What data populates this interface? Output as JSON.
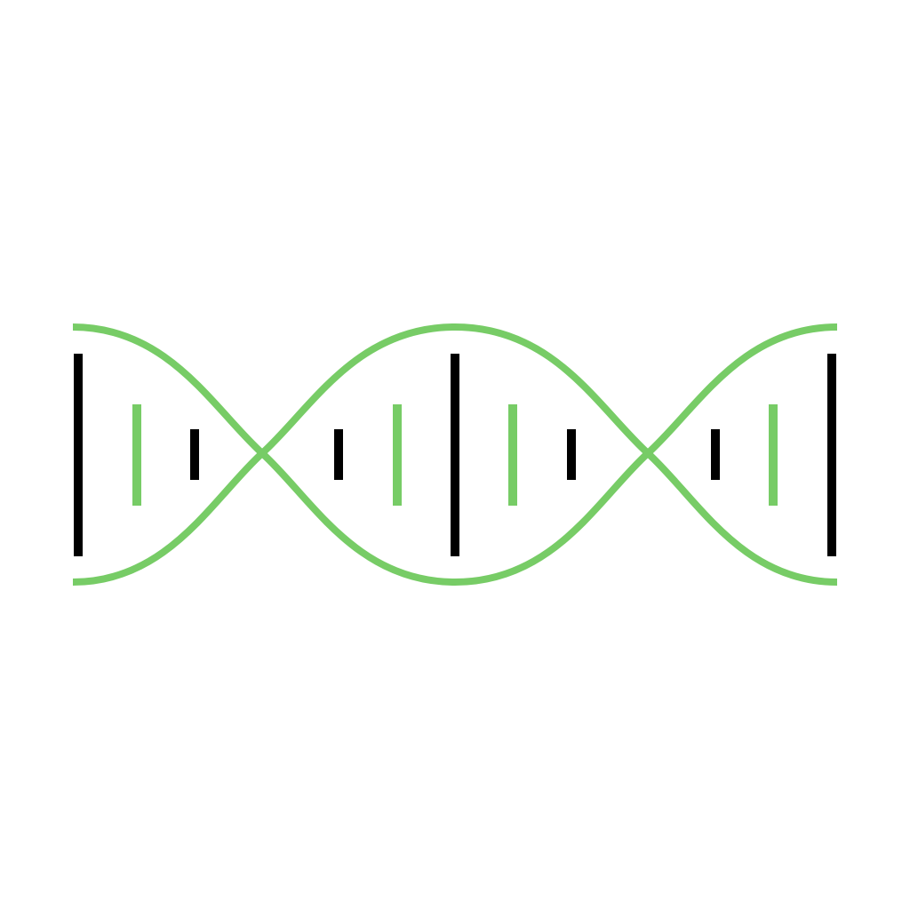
{
  "illustration": {
    "name": "dna-double-helix",
    "colors": {
      "background": "#ffffff",
      "strand": "#77cc66",
      "rung_black": "#000000",
      "rung_green": "#77cc66"
    },
    "rung_pattern": [
      "black",
      "green",
      "black",
      "black",
      "green",
      "black",
      "green",
      "black",
      "black",
      "green",
      "black"
    ]
  }
}
